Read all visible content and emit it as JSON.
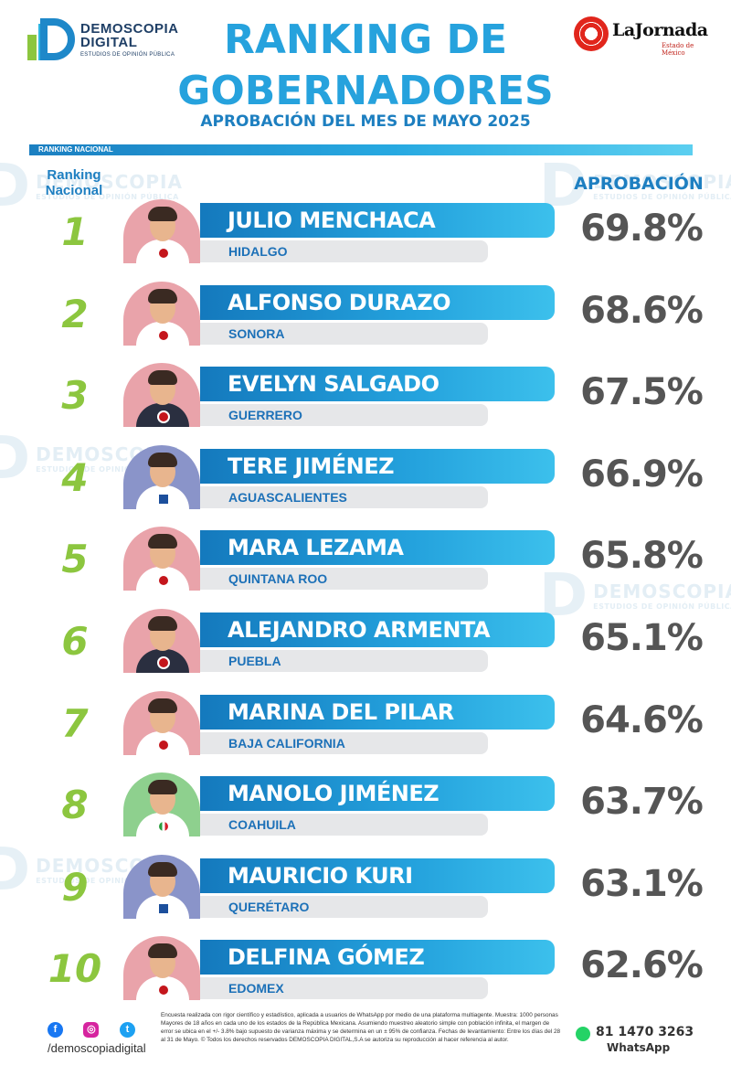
{
  "brand": {
    "line1": "DEMOSCOPIA",
    "line2": "DIGITAL",
    "tagline": "ESTUDIOS DE OPINIÓN PÚBLICA"
  },
  "partner": {
    "name": "LaJornada",
    "sub": "Estado de México"
  },
  "title": {
    "line1": "RANKING DE",
    "line2": "GOBERNADORES",
    "subtitle": "APROBACIÓN DEL MES DE MAYO 2025"
  },
  "section_label": "RANKING NACIONAL",
  "headers": {
    "rank_line1": "Ranking",
    "rank_line2": "Nacional",
    "approval": "APROBACIÓN"
  },
  "rows": [
    {
      "rank": "1",
      "name": "JULIO MENCHACA",
      "state": "HIDALGO",
      "approval": "69.8%"
    },
    {
      "rank": "2",
      "name": "ALFONSO DURAZO",
      "state": "SONORA",
      "approval": "68.6%"
    },
    {
      "rank": "3",
      "name": "EVELYN SALGADO",
      "state": "GUERRERO",
      "approval": "67.5%"
    },
    {
      "rank": "4",
      "name": "TERE JIMÉNEZ",
      "state": "AGUASCALIENTES",
      "approval": "66.9%"
    },
    {
      "rank": "5",
      "name": "MARA LEZAMA",
      "state": "QUINTANA ROO",
      "approval": "65.8%"
    },
    {
      "rank": "6",
      "name": "ALEJANDRO ARMENTA",
      "state": "PUEBLA",
      "approval": "65.1%"
    },
    {
      "rank": "7",
      "name": "MARINA DEL PILAR",
      "state": "BAJA CALIFORNIA",
      "approval": "64.6%"
    },
    {
      "rank": "8",
      "name": "MANOLO JIMÉNEZ",
      "state": "COAHUILA",
      "approval": "63.7%"
    },
    {
      "rank": "9",
      "name": "MAURICIO KURI",
      "state": "QUERÉTARO",
      "approval": "63.1%"
    },
    {
      "rank": "10",
      "name": "DELFINA GÓMEZ",
      "state": "EDOMEX",
      "approval": "62.6%"
    }
  ],
  "footer": {
    "note": "Encuesta realizada con rigor científico y estadístico, aplicada a usuarios de WhatsApp por medio de una plataforma multiagente. Muestra: 1000 personas Mayores de 18 años en cada uno de los estados de la República Mexicana. Asumiendo muestreo aleatorio simple con población infinita, el margen de error se ubica en el +/- 3.8% bajo supuesto de varianza máxima y se determina en un ± 95% de confianza. Fechas de levantamiento: Entre los días del 28 al 31 de Mayo. © Todos los derechos reservados DEMOSCOPIA DIGITAL,S.A se autoriza su reproducción al hacer referencia al autor.",
    "handle": "/demoscopiadigital",
    "phone": "81 1470 3263",
    "phone_label": "WhatsApp"
  }
}
